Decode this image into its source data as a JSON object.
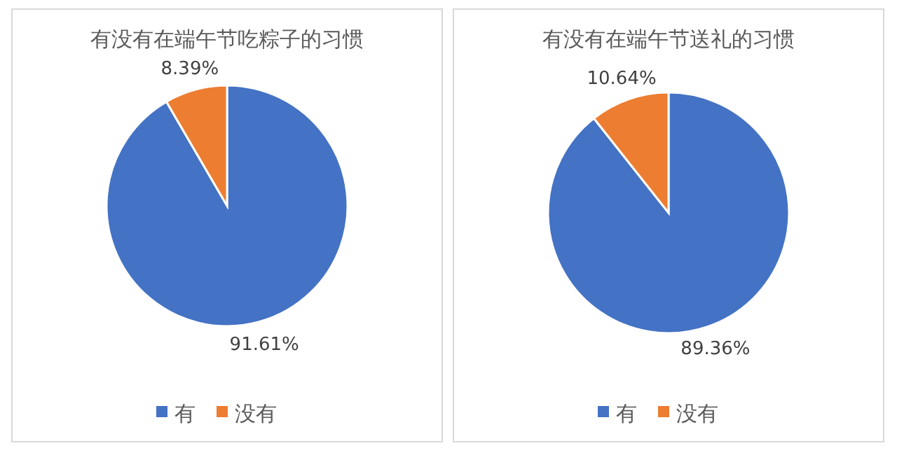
{
  "chart_data": [
    {
      "type": "pie",
      "title": "有没有在端午节吃粽子的习惯",
      "categories": [
        "有",
        "没有"
      ],
      "values": [
        91.61,
        8.39
      ],
      "value_labels": [
        "91.61%",
        "8.39%"
      ],
      "colors": [
        "#4472c4",
        "#ed7d31"
      ],
      "legend": "bottom"
    },
    {
      "type": "pie",
      "title": "有没有在端午节送礼的习惯",
      "categories": [
        "有",
        "没有"
      ],
      "values": [
        89.36,
        10.64
      ],
      "value_labels": [
        "89.36%",
        "10.64%"
      ],
      "colors": [
        "#4472c4",
        "#ed7d31"
      ],
      "legend": "bottom"
    }
  ]
}
